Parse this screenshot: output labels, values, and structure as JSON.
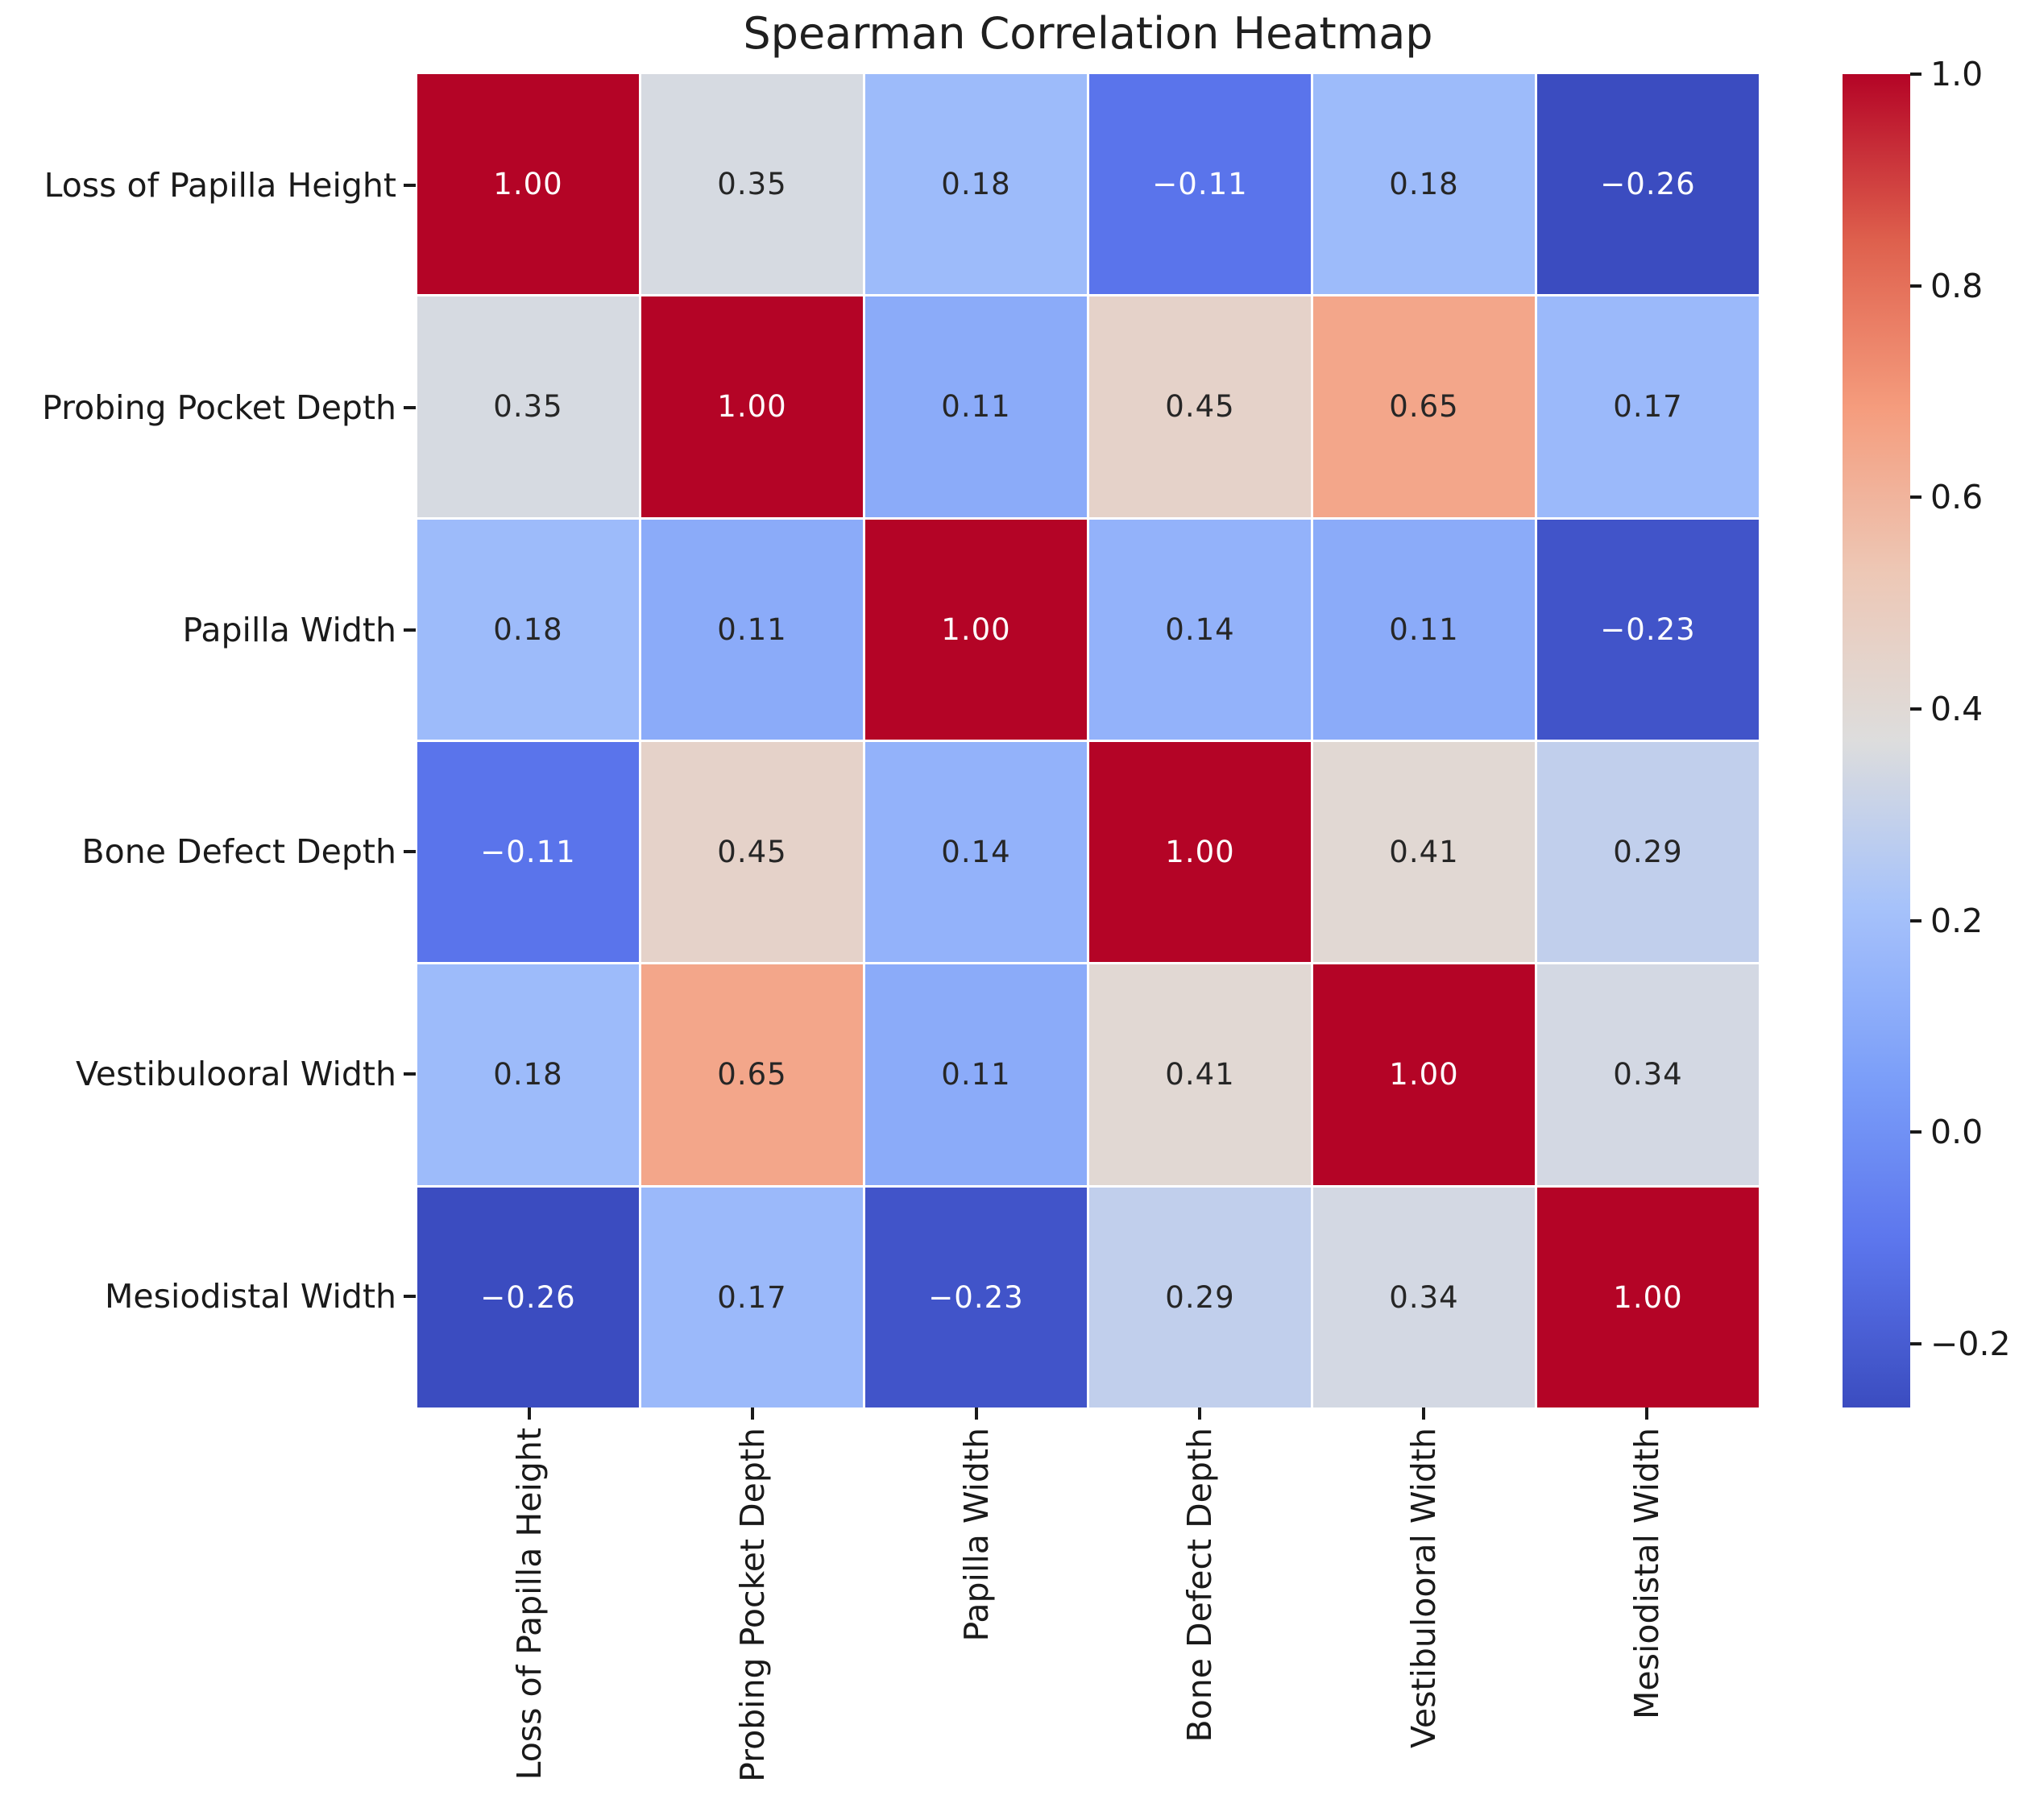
{
  "chart_data": {
    "type": "heatmap",
    "title": "Spearman Correlation Heatmap",
    "categories": [
      "Loss of Papilla Height",
      "Probing Pocket Depth",
      "Papilla Width",
      "Bone Defect Depth",
      "Vestibulooral Width",
      "Mesiodistal Width"
    ],
    "matrix": [
      [
        1.0,
        0.35,
        0.18,
        -0.11,
        0.18,
        -0.26
      ],
      [
        0.35,
        1.0,
        0.11,
        0.45,
        0.65,
        0.17
      ],
      [
        0.18,
        0.11,
        1.0,
        0.14,
        0.11,
        -0.23
      ],
      [
        -0.11,
        0.45,
        0.14,
        1.0,
        0.41,
        0.29
      ],
      [
        0.18,
        0.65,
        0.11,
        0.41,
        1.0,
        0.34
      ],
      [
        -0.26,
        0.17,
        -0.23,
        0.29,
        0.34,
        1.0
      ]
    ],
    "value_decimals": 2,
    "vmin": -0.26,
    "vmax": 1.0,
    "grid_on": true,
    "legend_position": "right-colorbar",
    "colormap": {
      "name": "coolwarm",
      "stops": [
        [
          0.0,
          "#3b4cc0"
        ],
        [
          0.125,
          "#5c76ed"
        ],
        [
          0.25,
          "#7c9ff9"
        ],
        [
          0.375,
          "#a6c2fa"
        ],
        [
          0.5,
          "#dddddd"
        ],
        [
          0.625,
          "#edc8b6"
        ],
        [
          0.75,
          "#f59c7d"
        ],
        [
          0.875,
          "#de604d"
        ],
        [
          1.0,
          "#b40426"
        ]
      ]
    },
    "annotation_text_dark": "#262626",
    "annotation_text_light": "#ffffff",
    "colorbar_ticks": [
      {
        "value": 1.0,
        "label": "1.0"
      },
      {
        "value": 0.8,
        "label": "0.8"
      },
      {
        "value": 0.6,
        "label": "0.6"
      },
      {
        "value": 0.4,
        "label": "0.4"
      },
      {
        "value": 0.2,
        "label": "0.2"
      },
      {
        "value": 0.0,
        "label": "0.0"
      },
      {
        "value": -0.2,
        "label": "−0.2"
      }
    ]
  }
}
